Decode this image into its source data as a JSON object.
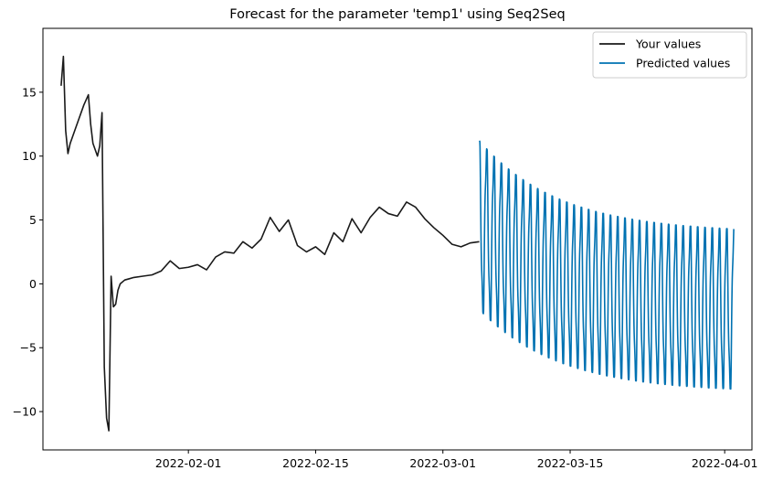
{
  "chart_data": {
    "type": "line",
    "title": "Forecast for the parameter 'temp1' using Seq2Seq",
    "xlabel": "",
    "ylabel": "",
    "xlim": [
      "2022-01-16",
      "2022-04-04"
    ],
    "ylim": [
      -13,
      20
    ],
    "x_ticks": [
      "2022-02-01",
      "2022-02-15",
      "2022-03-01",
      "2022-03-15",
      "2022-04-01"
    ],
    "y_ticks": [
      -10,
      -5,
      0,
      5,
      10,
      15
    ],
    "grid": false,
    "legend_position": "top-right",
    "series": [
      {
        "name": "Your values",
        "color": "#1a1a1a",
        "x": [
          "2022-01-18",
          "2022-01-18T06:00",
          "2022-01-18T12:00",
          "2022-01-18T18:00",
          "2022-01-19",
          "2022-01-19T12:00",
          "2022-01-20",
          "2022-01-20T12:00",
          "2022-01-21",
          "2022-01-21T06:00",
          "2022-01-21T12:00",
          "2022-01-21T18:00",
          "2022-01-22",
          "2022-01-22T06:00",
          "2022-01-22T12:00",
          "2022-01-22T18:00",
          "2022-01-23",
          "2022-01-23T06:00",
          "2022-01-23T12:00",
          "2022-01-23T18:00",
          "2022-01-24",
          "2022-01-24T06:00",
          "2022-01-24T12:00",
          "2022-01-25",
          "2022-01-25T12:00",
          "2022-01-26",
          "2022-01-27",
          "2022-01-28",
          "2022-01-29",
          "2022-01-30",
          "2022-01-31",
          "2022-02-01",
          "2022-02-02",
          "2022-02-03",
          "2022-02-04",
          "2022-02-05",
          "2022-02-06",
          "2022-02-07",
          "2022-02-08",
          "2022-02-09",
          "2022-02-10",
          "2022-02-11",
          "2022-02-12",
          "2022-02-13",
          "2022-02-14",
          "2022-02-15",
          "2022-02-16",
          "2022-02-17",
          "2022-02-18",
          "2022-02-19",
          "2022-02-20",
          "2022-02-21",
          "2022-02-22",
          "2022-02-23",
          "2022-02-24",
          "2022-02-25",
          "2022-02-26",
          "2022-02-27",
          "2022-02-28",
          "2022-03-01",
          "2022-03-02",
          "2022-03-03",
          "2022-03-04",
          "2022-03-05"
        ],
        "y": [
          15.5,
          17.8,
          12,
          10.2,
          11,
          12,
          13,
          14,
          14.8,
          12.5,
          11,
          10.5,
          10,
          10.8,
          13.4,
          -6.5,
          -10.5,
          -11.5,
          0.6,
          -1.8,
          -1.6,
          -0.5,
          0,
          0.3,
          0.4,
          0.5,
          0.6,
          0.7,
          1,
          1.8,
          1.2,
          1.3,
          1.5,
          1.1,
          2.1,
          2.5,
          2.4,
          3.3,
          2.8,
          3.5,
          5.2,
          4.1,
          5,
          3,
          2.5,
          2.9,
          2.3,
          4,
          3.3,
          5.1,
          4,
          5.2,
          6,
          5.5,
          5.3,
          6.4,
          6,
          5.1,
          4.4,
          3.8,
          3.1,
          2.9,
          3.2,
          3.3
        ]
      },
      {
        "name": "Predicted values",
        "color": "#0072b2",
        "type": "oscillation",
        "start": "2022-03-05",
        "end": "2022-04-02",
        "cycles_per_day": 1.25,
        "max_start": 11.2,
        "max_end": 4,
        "min_start": -2,
        "min_end": -8.5
      }
    ]
  }
}
